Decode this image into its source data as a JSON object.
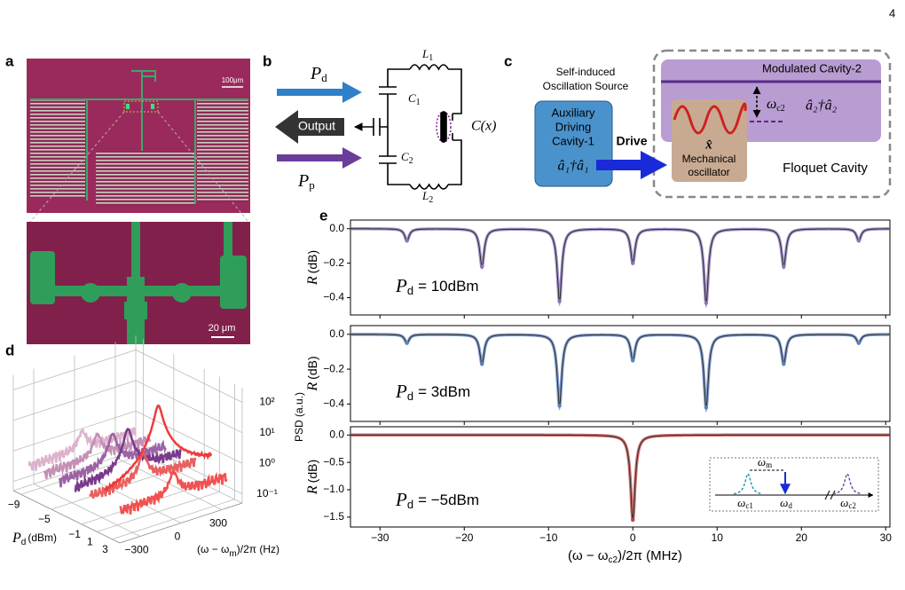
{
  "page_number": "4",
  "a": {
    "label": "a",
    "scale_top": "100μm",
    "scale_bottom": "20 μm"
  },
  "b": {
    "label": "b",
    "pd": {
      "main": "P",
      "sub": "d"
    },
    "pp": {
      "main": "P",
      "sub": "p"
    },
    "output": "Output",
    "c1": {
      "main": "C",
      "sub": "1"
    },
    "c2": {
      "main": "C",
      "sub": "2"
    },
    "l1": {
      "main": "L",
      "sub": "1"
    },
    "l2": {
      "main": "L",
      "sub": "2"
    },
    "cx": "C(x)"
  },
  "c": {
    "label": "c",
    "source": [
      "Self-induced",
      "Oscillation Source"
    ],
    "aux": [
      "Auxiliary",
      "Driving",
      "Cavity-1"
    ],
    "aux_op": "â₁†â₁",
    "drive": "Drive",
    "cavity2": "Modulated Cavity-2",
    "omega": {
      "main": "ω",
      "sub": "c2"
    },
    "cav_op": "â₂†â₂",
    "x_op": "x̂",
    "mech": [
      "Mechanical",
      "oscillator"
    ],
    "floquet": "Floquet Cavity"
  },
  "d": {
    "label": "d",
    "xlabel": {
      "main": "P",
      "sub": "d",
      "unit": "(dBm)"
    },
    "ylabel": {
      "pre": "(ω − ω",
      "sub": "m",
      "post": ")/2π (Hz)"
    },
    "zlabel": "PSD (a.u.)",
    "xlim": [
      -10,
      4
    ],
    "xticks": [
      {
        "value": -9,
        "label": "−9"
      },
      {
        "value": -5,
        "label": "−5"
      },
      {
        "value": -1,
        "label": "−1"
      },
      1,
      3
    ],
    "ylim": [
      -450,
      450
    ],
    "yticks": [
      {
        "value": -300,
        "label": "−300"
      },
      0,
      300
    ],
    "zlim": [
      0.05,
      300
    ],
    "zscale": "log",
    "zticks": [
      {
        "value": 100,
        "label": "10²"
      },
      {
        "value": 10,
        "label": "10¹"
      },
      {
        "value": 1,
        "label": "10⁰"
      },
      {
        "value": 0.1,
        "label": "10⁻¹"
      }
    ],
    "series": [
      {
        "pd": -9,
        "color": "#dcb2cc",
        "peak": 1
      },
      {
        "pd": -7,
        "color": "#c58fb6",
        "peak": 1.5
      },
      {
        "pd": -5,
        "color": "#9b62a4",
        "peak": 3
      },
      {
        "pd": -3,
        "color": "#7a3a8c",
        "peak": 8
      },
      {
        "pd": -1,
        "color": "#e86060",
        "peak": 2
      },
      {
        "pd": 1,
        "color": "#f03a3a",
        "peak": 150
      },
      {
        "pd": 3,
        "color": "#f25050",
        "peak": 1.5
      }
    ]
  },
  "e": {
    "label": "e",
    "xlabel": {
      "pre": "(ω − ω",
      "sub": "c2",
      "post": ")/2π (MHz)"
    },
    "xlim": [
      -33.5,
      30.5
    ],
    "xticks": [
      {
        "value": -30,
        "label": "−30"
      },
      {
        "value": -20,
        "label": "−20"
      },
      {
        "value": -10,
        "label": "−10"
      },
      0,
      10,
      20,
      30
    ],
    "plots": [
      {
        "ylabel": {
          "main": "R",
          "unit": "(dB)"
        },
        "annotation": {
          "main": "P",
          "sub": "d",
          "text": "= 10dBm"
        },
        "color": "#8a72bc",
        "ylim": [
          -0.5,
          0.05
        ],
        "yticks": [
          {
            "value": 0,
            "label": "0.0"
          },
          {
            "value": -0.2,
            "label": "−0.2"
          },
          {
            "value": -0.4,
            "label": "−0.4"
          }
        ],
        "dips": {
          "x": [
            -26.8,
            -17.9,
            -8.7,
            0,
            8.7,
            17.9,
            26.8
          ],
          "depth": [
            -0.07,
            -0.22,
            -0.42,
            -0.2,
            -0.43,
            -0.22,
            -0.07
          ]
        }
      },
      {
        "ylabel": {
          "main": "R",
          "unit": "(dB)"
        },
        "annotation": {
          "main": "P",
          "sub": "d",
          "text": "=  3dBm"
        },
        "color": "#5a82c2",
        "ylim": [
          -0.5,
          0.05
        ],
        "yticks": [
          {
            "value": 0,
            "label": "0.0"
          },
          {
            "value": -0.2,
            "label": "−0.2"
          },
          {
            "value": -0.4,
            "label": "−0.4"
          }
        ],
        "dips": {
          "x": [
            -26.8,
            -17.9,
            -8.7,
            0,
            8.7,
            17.9,
            26.8
          ],
          "depth": [
            -0.05,
            -0.17,
            -0.41,
            -0.15,
            -0.42,
            -0.17,
            -0.05
          ]
        }
      },
      {
        "ylabel": {
          "main": "R",
          "unit": "(dB)"
        },
        "annotation": {
          "main": "P",
          "sub": "d",
          "text": "= −5dBm"
        },
        "color": "#c04040",
        "ylim": [
          -1.68,
          0.15
        ],
        "yticks": [
          {
            "value": 0,
            "label": "0.0"
          },
          {
            "value": -0.5,
            "label": "−0.5"
          },
          {
            "value": -1,
            "label": "−1.0"
          },
          {
            "value": -1.5,
            "label": "−1.5"
          }
        ],
        "dips": {
          "x": [
            0
          ],
          "depth": [
            -1.55
          ]
        },
        "inset": {
          "wm": {
            "main": "ω",
            "sub": "m"
          },
          "wc1": {
            "main": "ω",
            "sub": "c1"
          },
          "wd": {
            "main": "ω",
            "sub": "d"
          },
          "wc2": {
            "main": "ω",
            "sub": "c2"
          }
        }
      }
    ]
  }
}
